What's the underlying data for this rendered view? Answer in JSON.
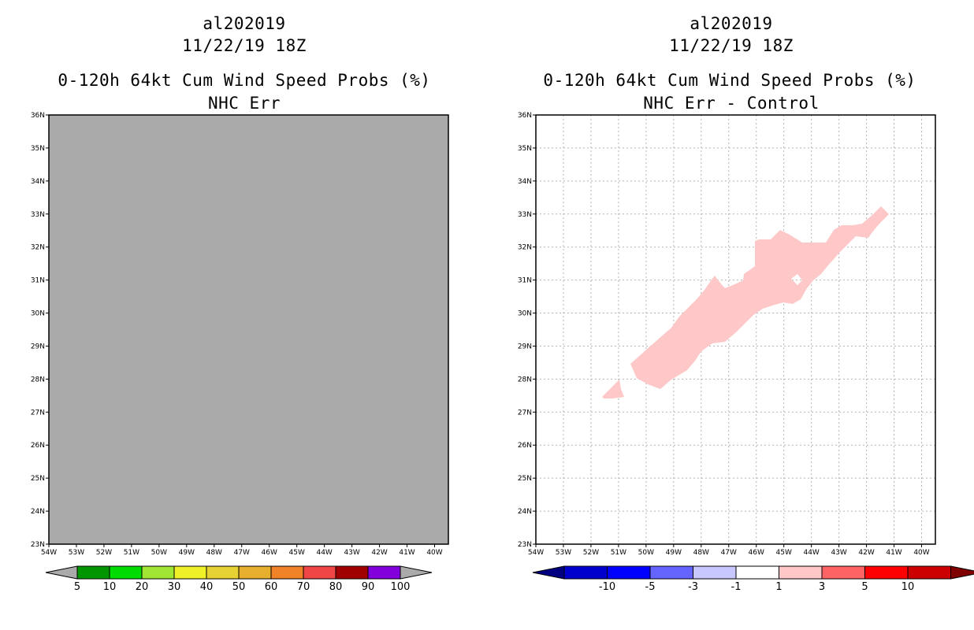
{
  "left_panel": {
    "storm_id": "al202019",
    "datetime": "11/22/19 18Z",
    "title": "0-120h 64kt Cum Wind Speed Probs (%)",
    "subtitle": "NHC Err",
    "fill_color": "#aaaaaa",
    "colorbar": {
      "labels": [
        "5",
        "10",
        "20",
        "30",
        "40",
        "50",
        "60",
        "70",
        "80",
        "90",
        "100"
      ],
      "colors": [
        "#009600",
        "#00dc00",
        "#a0e632",
        "#f0f028",
        "#e6d232",
        "#e6af2d",
        "#f08228",
        "#f04646",
        "#a00000",
        "#8200dc"
      ],
      "under_color": "#aaaaaa",
      "over_color": "#aaaaaa"
    }
  },
  "right_panel": {
    "storm_id": "al202019",
    "datetime": "11/22/19 18Z",
    "title": "0-120h 64kt Cum Wind Speed Probs (%)",
    "subtitle": "NHC Err - Control",
    "shade_color": "#ffc8c8",
    "colorbar": {
      "labels": [
        "-10",
        "-5",
        "-3",
        "-1",
        "1",
        "3",
        "5",
        "10"
      ],
      "colors": [
        "#0000cc",
        "#0000ff",
        "#6464ff",
        "#c8c8ff",
        "#ffffff",
        "#ffc8c8",
        "#ff6464",
        "#ff0000",
        "#cc0000"
      ],
      "under_color": "#000080",
      "over_color": "#800000"
    }
  },
  "map": {
    "lat_labels": [
      "36N",
      "35N",
      "34N",
      "33N",
      "32N",
      "31N",
      "30N",
      "29N",
      "28N",
      "27N",
      "26N",
      "25N",
      "24N",
      "23N"
    ],
    "lon_labels": [
      "54W",
      "53W",
      "52W",
      "51W",
      "50W",
      "49W",
      "48W",
      "47W",
      "46W",
      "45W",
      "44W",
      "43W",
      "42W",
      "41W",
      "40W"
    ],
    "lat_range": [
      23,
      36
    ],
    "lon_range": [
      -54,
      -39.5
    ]
  }
}
